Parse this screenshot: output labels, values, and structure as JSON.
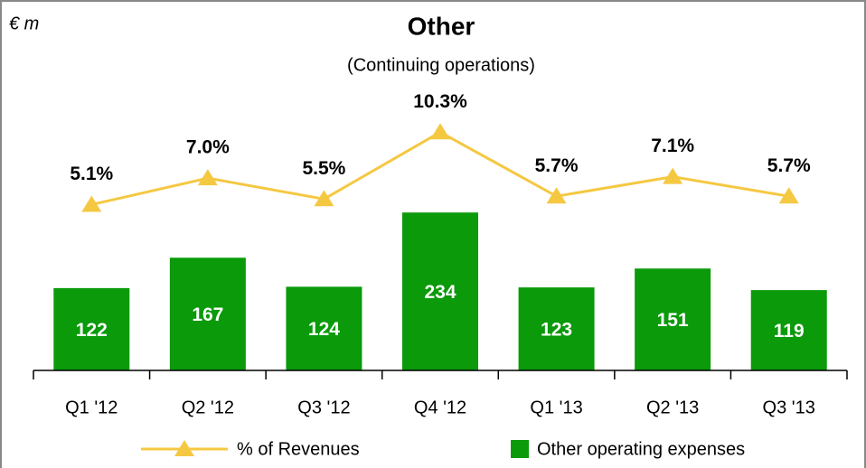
{
  "chart_data": {
    "type": "bar_line",
    "title": "Other",
    "subtitle": "(Continuing operations)",
    "unit_label": "€ m",
    "categories": [
      "Q1 '12",
      "Q2 '12",
      "Q3 '12",
      "Q4 '12",
      "Q1 '13",
      "Q2 '13",
      "Q3 '13"
    ],
    "series": [
      {
        "name": "Other operating expenses",
        "color": "#0a9a0a",
        "type": "bar",
        "values": [
          122,
          167,
          124,
          234,
          123,
          151,
          119
        ]
      },
      {
        "name": "% of Revenues",
        "color": "#f5c842",
        "type": "line",
        "axis": "y2",
        "values": [
          5.1,
          7.0,
          5.5,
          10.3,
          5.7,
          7.1,
          5.7
        ],
        "value_labels": [
          "5.1%",
          "7.0%",
          "5.5%",
          "10.3%",
          "5.7%",
          "7.1%",
          "5.7%"
        ]
      }
    ],
    "ylim": [
      0,
      415
    ],
    "y2lim": [
      -6.8,
      13.3
    ]
  }
}
